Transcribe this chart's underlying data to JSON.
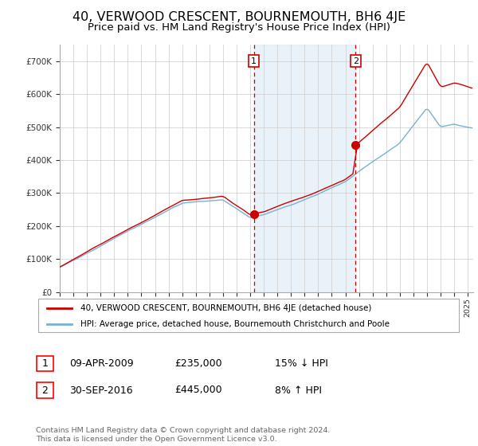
{
  "title": "40, VERWOOD CRESCENT, BOURNEMOUTH, BH6 4JE",
  "subtitle": "Price paid vs. HM Land Registry's House Price Index (HPI)",
  "title_fontsize": 11.5,
  "subtitle_fontsize": 9.5,
  "hpi_color": "#7ab0d4",
  "price_color": "#cc0000",
  "background_color": "#ffffff",
  "plot_bg_color": "#ffffff",
  "grid_color": "#cccccc",
  "ylim": [
    0,
    750000
  ],
  "yticks": [
    0,
    100000,
    200000,
    300000,
    400000,
    500000,
    600000,
    700000
  ],
  "ytick_labels": [
    "£0",
    "£100K",
    "£200K",
    "£300K",
    "£400K",
    "£500K",
    "£600K",
    "£700K"
  ],
  "sale1_year_float": 2009.27,
  "sale2_year_float": 2016.75,
  "sale1_price": 235000,
  "sale2_price": 445000,
  "marker1_date": "09-APR-2009",
  "marker1_price": "£235,000",
  "marker1_hpi": "15% ↓ HPI",
  "marker2_date": "30-SEP-2016",
  "marker2_price": "£445,000",
  "marker2_hpi": "8% ↑ HPI",
  "legend_line1": "40, VERWOOD CRESCENT, BOURNEMOUTH, BH6 4JE (detached house)",
  "legend_line2": "HPI: Average price, detached house, Bournemouth Christchurch and Poole",
  "footer": "Contains HM Land Registry data © Crown copyright and database right 2024.\nThis data is licensed under the Open Government Licence v3.0.",
  "shaded_region_color": "#ddeaf5",
  "shaded_region_alpha": 0.6
}
